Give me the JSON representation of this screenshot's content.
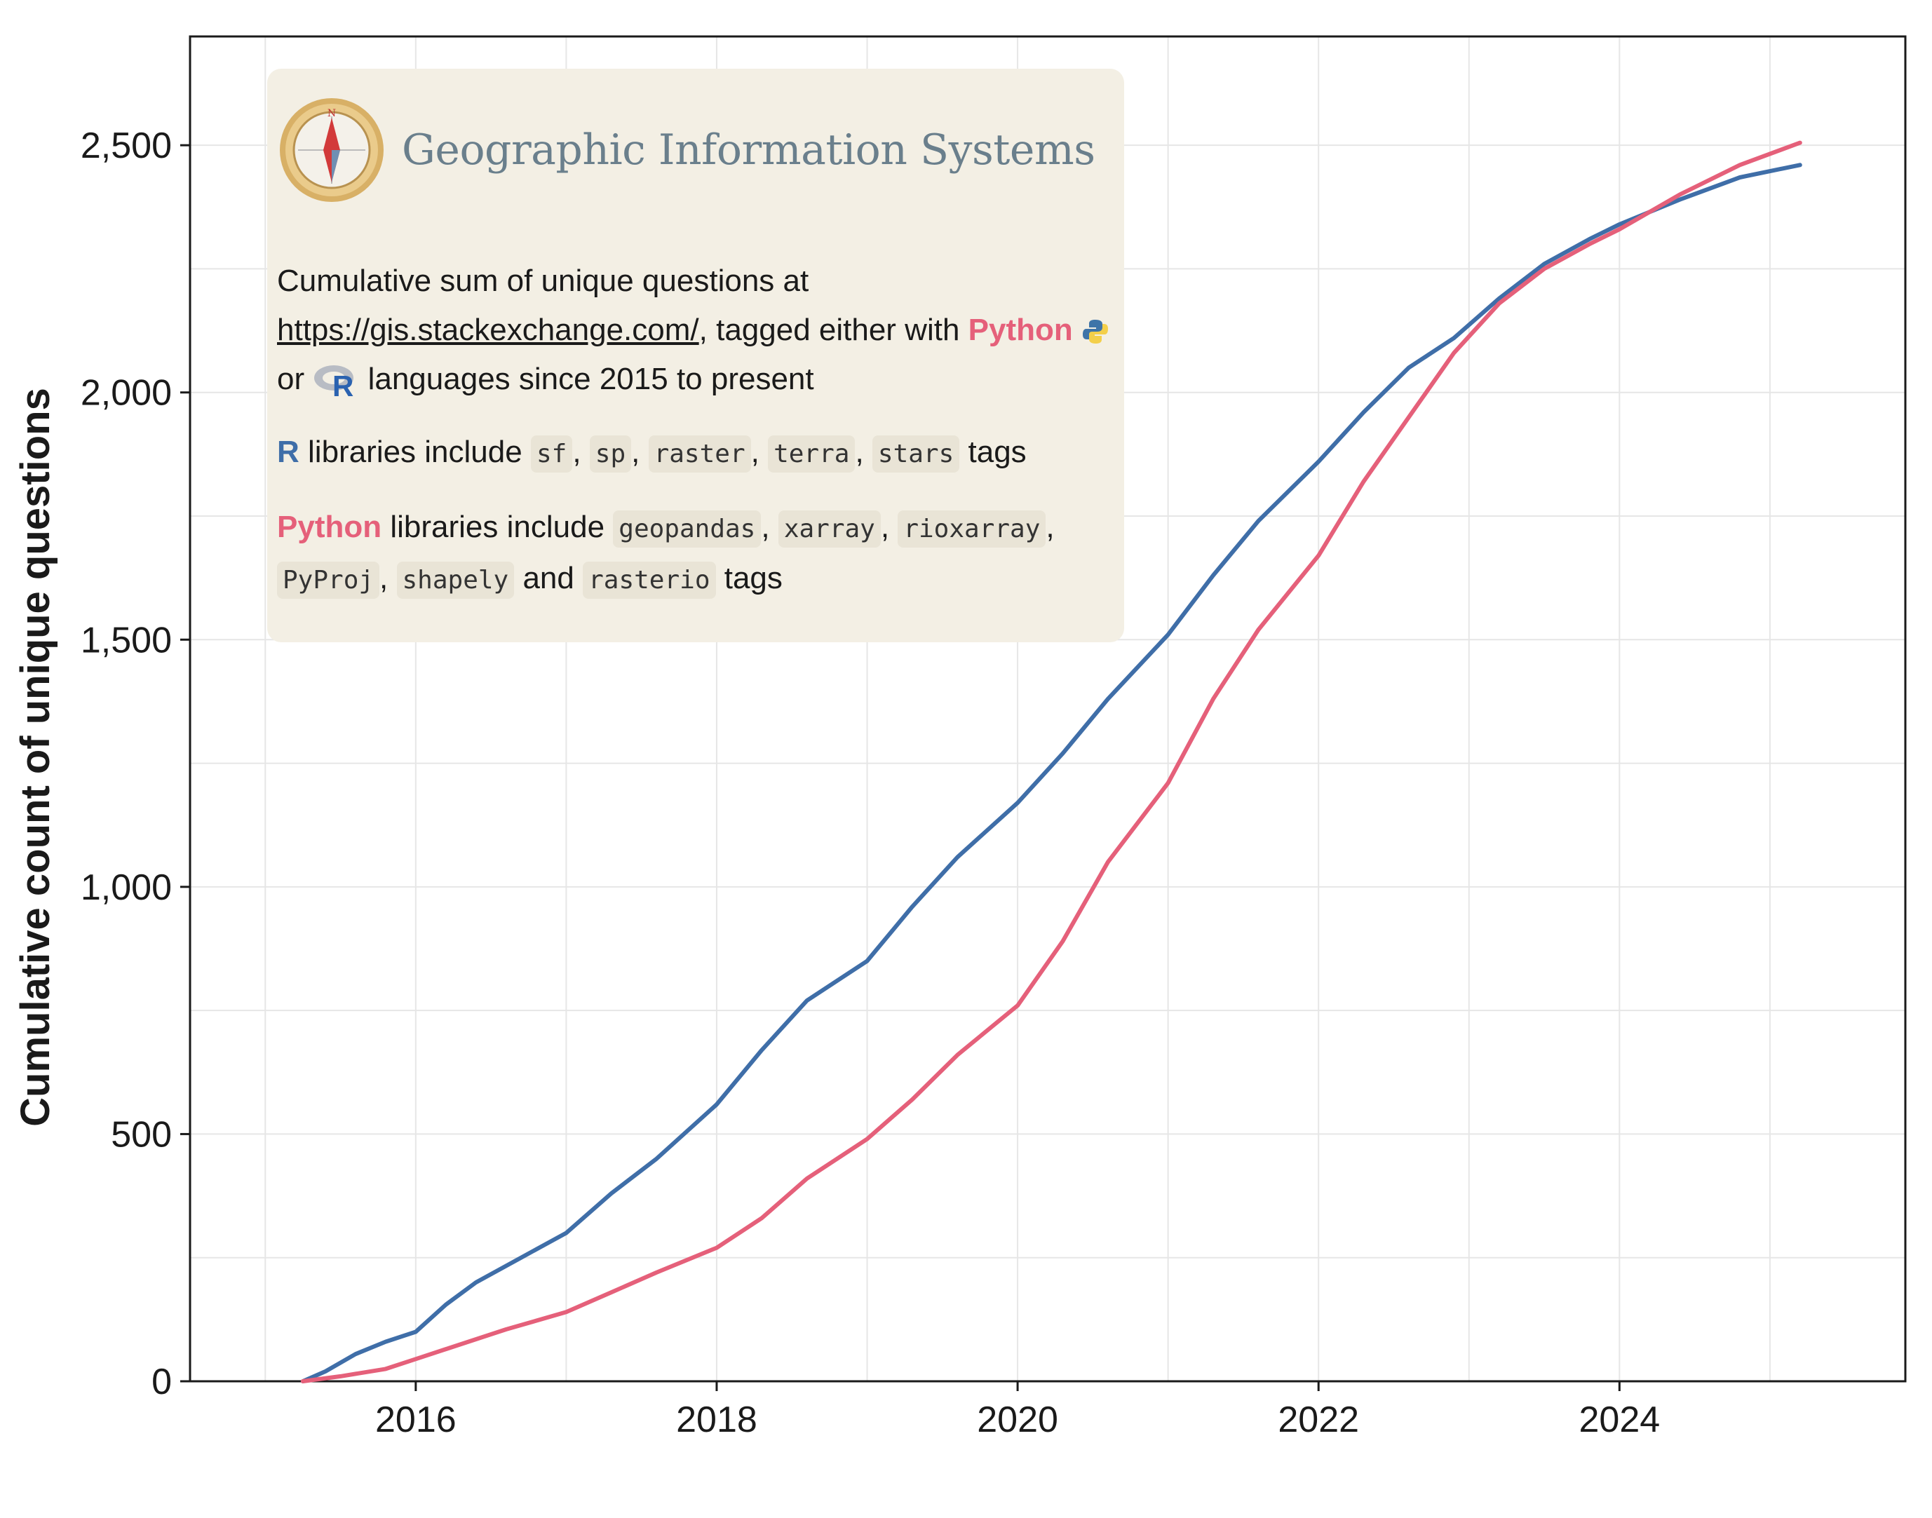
{
  "chart_data": {
    "type": "line",
    "ylabel": "Cumulative count of unique questions",
    "xlabel": "",
    "xlim": [
      2014.5,
      2025.9
    ],
    "ylim": [
      0,
      2720
    ],
    "x_ticks": [
      2016,
      2018,
      2020,
      2022,
      2024
    ],
    "x_tick_labels": [
      "2016",
      "2018",
      "2020",
      "2022",
      "2024"
    ],
    "y_ticks": [
      0,
      500,
      1000,
      1500,
      2000,
      2500
    ],
    "y_tick_labels": [
      "0",
      "500",
      "1,000",
      "1,500",
      "2,000",
      "2,500"
    ],
    "grid": true,
    "series": [
      {
        "name": "R",
        "color": "#3f6ea8",
        "x": [
          2015.25,
          2015.4,
          2015.6,
          2015.8,
          2016.0,
          2016.2,
          2016.4,
          2016.7,
          2017.0,
          2017.3,
          2017.6,
          2018.0,
          2018.3,
          2018.6,
          2019.0,
          2019.3,
          2019.6,
          2020.0,
          2020.3,
          2020.6,
          2021.0,
          2021.3,
          2021.6,
          2022.0,
          2022.3,
          2022.6,
          2022.9,
          2023.2,
          2023.5,
          2023.8,
          2024.0,
          2024.4,
          2024.8,
          2025.2
        ],
        "values": [
          0,
          20,
          55,
          80,
          100,
          155,
          200,
          250,
          300,
          380,
          450,
          560,
          670,
          770,
          850,
          960,
          1060,
          1170,
          1270,
          1380,
          1510,
          1630,
          1740,
          1860,
          1960,
          2050,
          2110,
          2190,
          2260,
          2310,
          2340,
          2390,
          2435,
          2460
        ]
      },
      {
        "name": "Python",
        "color": "#e5607a",
        "x": [
          2015.25,
          2015.5,
          2015.8,
          2016.0,
          2016.3,
          2016.6,
          2017.0,
          2017.3,
          2017.6,
          2018.0,
          2018.3,
          2018.6,
          2019.0,
          2019.3,
          2019.6,
          2020.0,
          2020.3,
          2020.6,
          2021.0,
          2021.3,
          2021.6,
          2022.0,
          2022.3,
          2022.6,
          2022.9,
          2023.2,
          2023.5,
          2023.8,
          2024.0,
          2024.4,
          2024.8,
          2025.2
        ],
        "values": [
          0,
          10,
          25,
          45,
          75,
          105,
          140,
          180,
          220,
          270,
          330,
          410,
          490,
          570,
          660,
          760,
          890,
          1050,
          1210,
          1380,
          1520,
          1670,
          1820,
          1950,
          2080,
          2180,
          2250,
          2300,
          2330,
          2400,
          2460,
          2505
        ]
      }
    ],
    "annotation": {
      "title": "Geographic Information Systems",
      "line1_pre": "Cumulative sum of unique questions at ",
      "url": "https://gis.stackexchange.com/",
      "line1_post": ", tagged either with ",
      "python_word": "Python",
      "or_word": "or",
      "line2_post": "languages since 2015 to present",
      "r_word": "R",
      "r_libs_pre": "libraries include",
      "r_tags": [
        "sf",
        "sp",
        "raster",
        "terra",
        "stars"
      ],
      "tags_word": "tags",
      "py_libs_pre": "libraries include",
      "py_tags": [
        "geopandas",
        "xarray",
        "rioxarray",
        "PyProj",
        "shapely"
      ],
      "and_word": "and",
      "py_last_tag": "rasterio"
    }
  }
}
